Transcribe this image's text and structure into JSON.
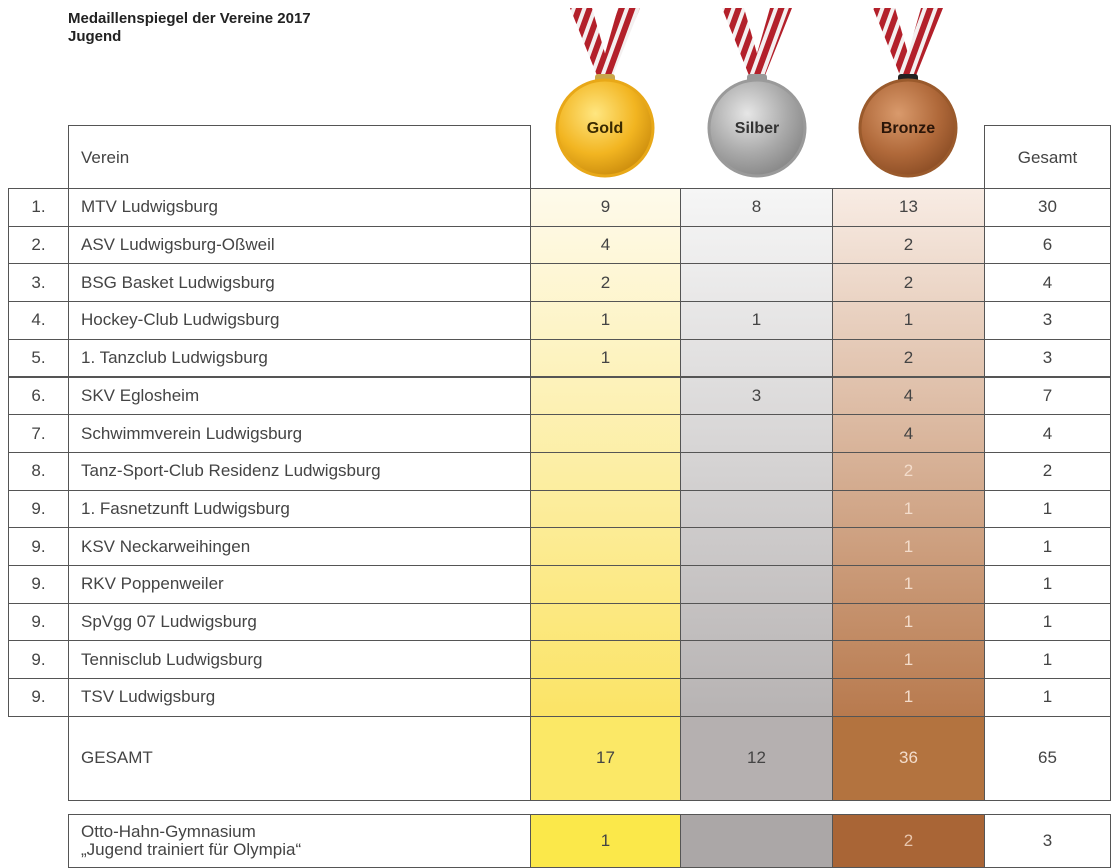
{
  "header": {
    "title": "Medaillenspiegel der Vereine 2017",
    "subtitle": "Jugend"
  },
  "table": {
    "columns": [
      "Verein",
      "Gold",
      "Silber",
      "Bronze",
      "Gesamt"
    ],
    "rows": [
      {
        "rank": "1.",
        "name": "MTV Ludwigsburg",
        "gold": 9,
        "silver": 8,
        "bronze": 13,
        "total": 30
      },
      {
        "rank": "2.",
        "name": "ASV Ludwigsburg-Oßweil",
        "gold": 4,
        "silver": null,
        "bronze": 2,
        "total": 6
      },
      {
        "rank": "3.",
        "name": "BSG Basket Ludwigsburg",
        "gold": 2,
        "silver": null,
        "bronze": 2,
        "total": 4
      },
      {
        "rank": "4.",
        "name": "Hockey-Club Ludwigsburg",
        "gold": 1,
        "silver": 1,
        "bronze": 1,
        "total": 3
      },
      {
        "rank": "5.",
        "name": "1. Tanzclub Ludwigsburg",
        "gold": 1,
        "silver": null,
        "bronze": 2,
        "total": 3
      },
      {
        "rank": "6.",
        "name": "SKV Eglosheim",
        "gold": null,
        "silver": 3,
        "bronze": 4,
        "total": 7
      },
      {
        "rank": "7.",
        "name": "Schwimmverein Ludwigsburg",
        "gold": null,
        "silver": null,
        "bronze": 4,
        "total": 4
      },
      {
        "rank": "8.",
        "name": "Tanz-Sport-Club Residenz Ludwigsburg",
        "gold": null,
        "silver": null,
        "bronze": 2,
        "total": 2
      },
      {
        "rank": "9.",
        "name": "1. Fasnetzunft Ludwigsburg",
        "gold": null,
        "silver": null,
        "bronze": 1,
        "total": 1
      },
      {
        "rank": "9.",
        "name": "KSV Neckarweihingen",
        "gold": null,
        "silver": null,
        "bronze": 1,
        "total": 1
      },
      {
        "rank": "9.",
        "name": "RKV Poppenweiler",
        "gold": null,
        "silver": null,
        "bronze": 1,
        "total": 1
      },
      {
        "rank": "9.",
        "name": "SpVgg 07 Ludwigsburg",
        "gold": null,
        "silver": null,
        "bronze": 1,
        "total": 1
      },
      {
        "rank": "9.",
        "name": "Tennisclub Ludwigsburg",
        "gold": null,
        "silver": null,
        "bronze": 1,
        "total": 1
      },
      {
        "rank": "9.",
        "name": "TSV Ludwigsburg",
        "gold": null,
        "silver": null,
        "bronze": 1,
        "total": 1
      }
    ],
    "total_row": {
      "label": "GESAMT",
      "gold": 17,
      "silver": 12,
      "bronze": 36,
      "total": 65
    },
    "extra_row": {
      "label_lines": [
        "Otto-Hahn-Gymnasium",
        "„Jugend trainiert für Olympia“"
      ],
      "gold": 1,
      "silver": null,
      "bronze": 2,
      "total": 3
    }
  }
}
